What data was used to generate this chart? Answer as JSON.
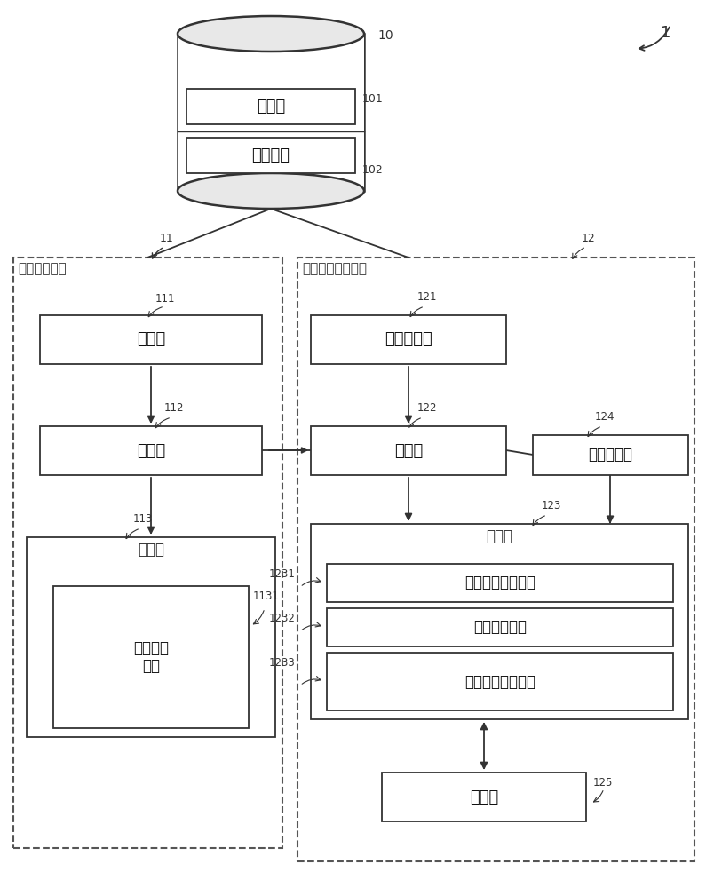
{
  "bg_color": "#ffffff",
  "lc": "#333333",
  "figsize": [
    7.95,
    10.0
  ],
  "dpi": 100,
  "db_box1_label": "语料库",
  "db_box1_num": "101",
  "db_box2_label": "对话数据",
  "db_box2_num": "102",
  "db_num": "10",
  "ref_num": "1",
  "left_title": "学习处理装置",
  "left_num": "11",
  "box111_label": "取得部",
  "box111_num": "111",
  "box112_label": "学习部",
  "box112_num": "112",
  "box113_label": "存储部",
  "box113_num": "113",
  "box1131_label": "学习结果\n信息",
  "box1131_num": "1131",
  "right_title": "说话继续判定装置",
  "right_num": "12",
  "box121_label": "对话取得部",
  "box121_num": "121",
  "box122_label": "推定部",
  "box122_num": "122",
  "box124_label": "状况取得部",
  "box124_num": "124",
  "box123_label": "存储部",
  "box123_num": "123",
  "box1231_label": "应答延迟推定结果",
  "box1231_num": "1231",
  "box1232_label": "用户状况信息",
  "box1232_num": "1232",
  "box1233_label": "说话继续判定结果",
  "box1233_num": "1233",
  "box125_label": "判定部",
  "box125_num": "125"
}
